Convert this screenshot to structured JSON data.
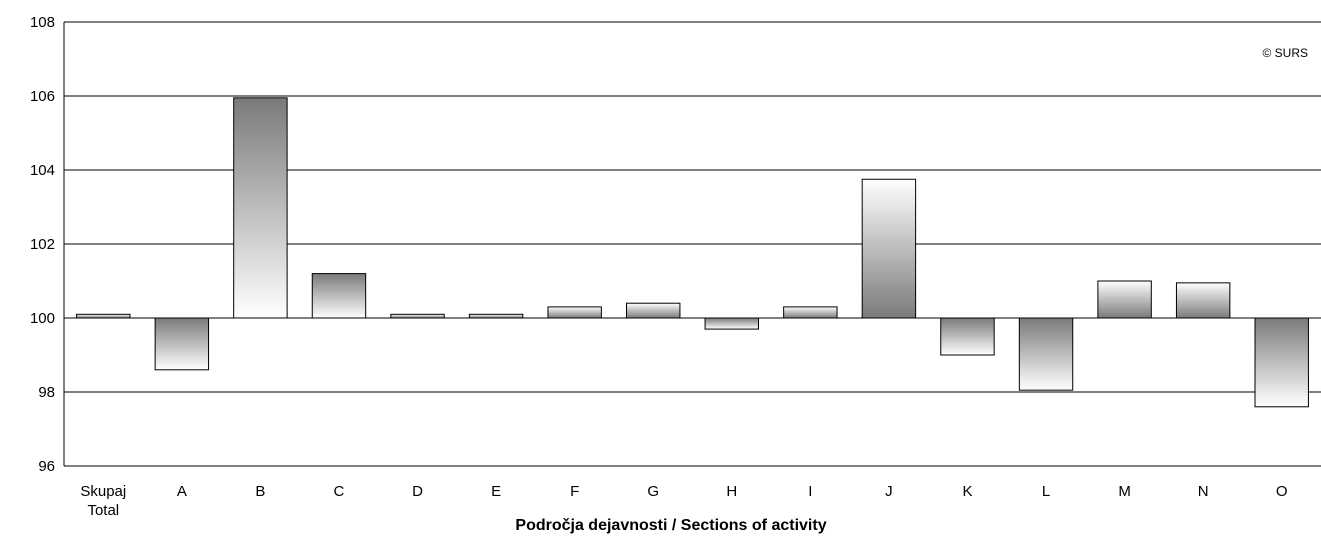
{
  "chart_data": {
    "type": "bar",
    "title": "",
    "xlabel": "Področja dejavnosti / Sections of activity",
    "ylabel": "",
    "ylim": [
      96,
      108
    ],
    "yticks": [
      96,
      98,
      100,
      102,
      104,
      106,
      108
    ],
    "baseline": 100,
    "grid": true,
    "categories": [
      [
        "Skupaj",
        "Total"
      ],
      [
        "A"
      ],
      [
        "B"
      ],
      [
        "C"
      ],
      [
        "D"
      ],
      [
        "E"
      ],
      [
        "F"
      ],
      [
        "G"
      ],
      [
        "H"
      ],
      [
        "I"
      ],
      [
        "J"
      ],
      [
        "K"
      ],
      [
        "L"
      ],
      [
        "M"
      ],
      [
        "N"
      ],
      [
        "O"
      ]
    ],
    "values": [
      100.1,
      98.6,
      105.95,
      101.2,
      100.1,
      100.1,
      100.3,
      100.4,
      99.7,
      100.3,
      103.75,
      99.0,
      98.05,
      101.0,
      100.95,
      97.6
    ],
    "copyright": "© SURS"
  },
  "colors": {
    "bar_dark": "#7a7a7a",
    "bar_light": "#ffffff",
    "grid": "#000000",
    "axis": "#000000"
  }
}
